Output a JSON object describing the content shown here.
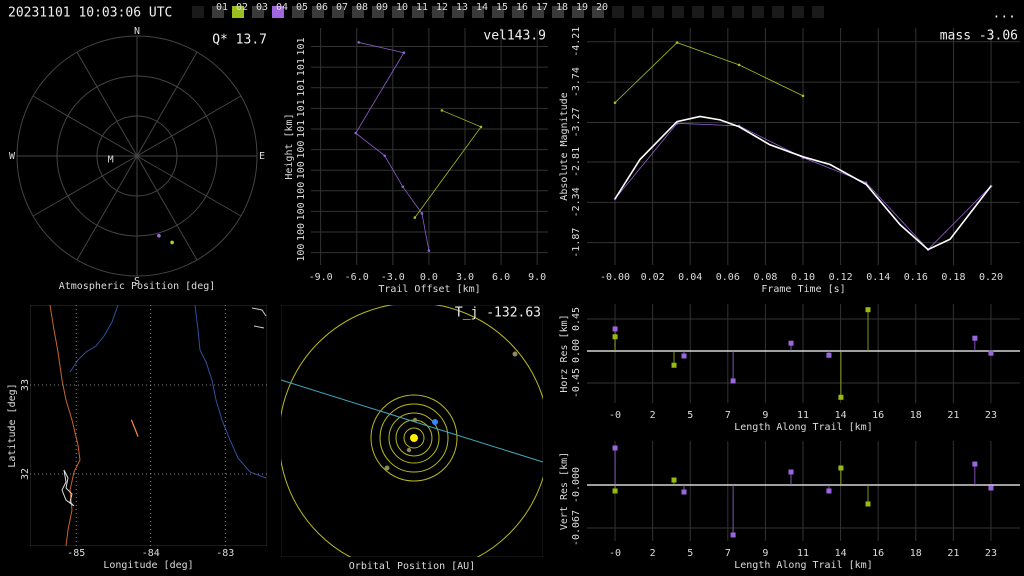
{
  "header": {
    "timestamp": "20231101 10:03:06 UTC",
    "menu": "...",
    "stations": [
      {
        "label": "01",
        "color": "#3a3a3a"
      },
      {
        "label": "02",
        "color": "#99c020"
      },
      {
        "label": "03",
        "color": "#3a3a3a"
      },
      {
        "label": "04",
        "color": "#a066e0"
      },
      {
        "label": "05",
        "color": "#3a3a3a"
      },
      {
        "label": "06",
        "color": "#3a3a3a"
      },
      {
        "label": "07",
        "color": "#3a3a3a"
      },
      {
        "label": "08",
        "color": "#3a3a3a"
      },
      {
        "label": "09",
        "color": "#3a3a3a"
      },
      {
        "label": "10",
        "color": "#3a3a3a"
      },
      {
        "label": "11",
        "color": "#3a3a3a"
      },
      {
        "label": "12",
        "color": "#3a3a3a"
      },
      {
        "label": "13",
        "color": "#3a3a3a"
      },
      {
        "label": "14",
        "color": "#3a3a3a"
      },
      {
        "label": "15",
        "color": "#3a3a3a"
      },
      {
        "label": "16",
        "color": "#3a3a3a"
      },
      {
        "label": "17",
        "color": "#3a3a3a"
      },
      {
        "label": "18",
        "color": "#3a3a3a"
      },
      {
        "label": "19",
        "color": "#3a3a3a"
      },
      {
        "label": "20",
        "color": "#3a3a3a"
      }
    ]
  },
  "chart_data": [
    {
      "type": "polar",
      "annotation": "Q* 13.7",
      "xlabel": "Atmospheric Position [deg]",
      "compass": [
        "N",
        "E",
        "S",
        "W"
      ],
      "points": [
        {
          "az": 164.6,
          "el": 28,
          "color": "#a070e0"
        },
        {
          "az": 157.9,
          "el": 20,
          "color": "#b0d020"
        }
      ],
      "marker": {
        "label": "M",
        "az": 262,
        "el": 70
      }
    },
    {
      "type": "line",
      "annotation": "vel143.9",
      "xlabel": "Trail Offset [km]",
      "ylabel": "Height [km]",
      "xlim": [
        -9.8,
        9.9
      ],
      "ylim": [
        99.89,
        101.04
      ],
      "grid": true,
      "xticks": [
        {
          "value": -9,
          "label": "-9.0"
        },
        {
          "value": -6,
          "label": "-6.0"
        },
        {
          "value": -3,
          "label": "-3.0"
        },
        {
          "value": 0,
          "label": "0.0"
        },
        {
          "value": 3,
          "label": "3.0"
        },
        {
          "value": 6,
          "label": "6.0"
        },
        {
          "value": 9,
          "label": "9.0"
        }
      ],
      "yticks": [
        {
          "value": 99.95,
          "label": "100"
        },
        {
          "value": 100.05,
          "label": "100"
        },
        {
          "value": 100.15,
          "label": "100"
        },
        {
          "value": 100.25,
          "label": "100"
        },
        {
          "value": 100.35,
          "label": "100"
        },
        {
          "value": 100.45,
          "label": "100"
        },
        {
          "value": 100.55,
          "label": "101"
        },
        {
          "value": 100.65,
          "label": "101"
        },
        {
          "value": 100.75,
          "label": "101"
        },
        {
          "value": 100.85,
          "label": "101"
        },
        {
          "value": 100.95,
          "label": "101"
        }
      ],
      "series": [
        {
          "color": "#9060d0",
          "x": [
            -5.83,
            -2.08,
            -6.08,
            -3.67,
            -2.17,
            -0.58,
            0.0
          ],
          "values": [
            100.97,
            100.92,
            100.53,
            100.42,
            100.27,
            100.14,
            99.96
          ]
        },
        {
          "color": "#a0c020",
          "x": [
            1.08,
            4.33,
            -1.17
          ],
          "values": [
            100.64,
            100.56,
            100.12
          ]
        }
      ]
    },
    {
      "type": "line",
      "annotation": "mass -3.06",
      "xlabel": "Frame Time [s]",
      "ylabel": "Absolute Magnitude",
      "xlim": [
        -0.0149,
        0.2154
      ],
      "ylim": [
        -4.37,
        -1.61
      ],
      "y_inverted": true,
      "grid": true,
      "xticks": [
        {
          "value": 0,
          "label": "-0.00"
        },
        0.02,
        0.04,
        0.06,
        0.08,
        {
          "value": 0.1,
          "label": "0.10"
        },
        0.12,
        0.14,
        0.16,
        0.18,
        {
          "value": 0.2,
          "label": "0.20"
        }
      ],
      "yticks": [
        -4.21,
        -3.74,
        -3.27,
        -2.81,
        -2.34,
        -1.87
      ],
      "series": [
        {
          "color": "#a0c020",
          "x": [
            0,
            0.033,
            0.066,
            0.1
          ],
          "values": [
            -3.5,
            -4.2,
            -3.94,
            -3.58
          ]
        },
        {
          "color": "#9060d0",
          "x": [
            0,
            0.033,
            0.066,
            0.1,
            0.1335,
            0.1665,
            0.2
          ],
          "values": [
            -2.38,
            -3.26,
            -3.23,
            -2.86,
            -2.57,
            -1.79,
            -2.53
          ]
        },
        {
          "color": "#ffffff",
          "width": 1.6,
          "x": [
            0,
            0.0133,
            0.033,
            0.0452,
            0.0559,
            0.066,
            0.0824,
            0.1,
            0.1144,
            0.1335,
            0.1516,
            0.1665,
            0.1782,
            0.2
          ],
          "values": [
            -2.38,
            -2.84,
            -3.28,
            -3.34,
            -3.3,
            -3.22,
            -3.01,
            -2.87,
            -2.78,
            -2.55,
            -2.08,
            -1.79,
            -1.91,
            -2.53
          ]
        }
      ]
    },
    {
      "type": "map",
      "xlabel": "Longitude [deg]",
      "ylabel": "Latitude [deg]",
      "xlim": [
        -85.62,
        -82.44
      ],
      "ylim": [
        31.19,
        33.9
      ],
      "grid": "dotted",
      "xticks": [
        -85,
        -84,
        -83
      ],
      "yticks": [
        32,
        33
      ],
      "trail": {
        "color": "#ff8844",
        "lon": [
          -84.26,
          -84.17
        ],
        "lat": [
          32.61,
          32.42
        ]
      }
    },
    {
      "type": "orbit",
      "xlabel": "Orbital Position [AU]",
      "annotation": "T_j -132.63"
    },
    {
      "type": "stem",
      "xlabel": "Length Along Trail [km]",
      "ylabel": "Horz Res [km]",
      "xlim": [
        -1.71,
        24.67
      ],
      "ylim": [
        -0.73,
        0.66
      ],
      "grid": true,
      "xticks": [
        {
          "value": 0,
          "label": "-0"
        },
        {
          "value": 2.29,
          "label": "2"
        },
        {
          "value": 4.58,
          "label": "5"
        },
        {
          "value": 6.87,
          "label": "7"
        },
        {
          "value": 9.16,
          "label": "9"
        },
        {
          "value": 11.45,
          "label": "11"
        },
        {
          "value": 13.74,
          "label": "14"
        },
        {
          "value": 16.03,
          "label": "16"
        },
        {
          "value": 18.32,
          "label": "18"
        },
        {
          "value": 20.61,
          "label": "21"
        },
        {
          "value": 22.9,
          "label": "23"
        }
      ],
      "yticks": [
        0.45,
        {
          "value": 0,
          "label": "0.00"
        },
        -0.45
      ],
      "series": [
        {
          "color": "#9966dd",
          "x": [
            0,
            4.2,
            7.19,
            10.72,
            13.03,
            21.92,
            22.9
          ],
          "values": [
            0.31,
            -0.07,
            -0.42,
            0.11,
            -0.06,
            0.18,
            -0.03
          ]
        },
        {
          "color": "#99bb11",
          "x": [
            0,
            3.59,
            13.76,
            15.41
          ],
          "values": [
            0.2,
            -0.2,
            -0.65,
            0.58
          ]
        }
      ]
    },
    {
      "type": "stem",
      "xlabel": "Length Along Trail [km]",
      "ylabel": "Vert Res [km]",
      "xlim": [
        -1.71,
        24.67
      ],
      "ylim": [
        -0.0873,
        0.0686
      ],
      "grid": true,
      "xticks": [
        {
          "value": 0,
          "label": "-0"
        },
        {
          "value": 2.29,
          "label": "2"
        },
        {
          "value": 4.58,
          "label": "5"
        },
        {
          "value": 6.87,
          "label": "7"
        },
        {
          "value": 9.16,
          "label": "9"
        },
        {
          "value": 11.45,
          "label": "11"
        },
        {
          "value": 13.74,
          "label": "14"
        },
        {
          "value": 16.03,
          "label": "16"
        },
        {
          "value": 18.32,
          "label": "18"
        },
        {
          "value": 20.61,
          "label": "21"
        },
        {
          "value": 22.9,
          "label": "23"
        }
      ],
      "yticks": [
        {
          "value": 0,
          "label": "-0.000"
        },
        -0.067
      ],
      "series": [
        {
          "color": "#9966dd",
          "x": [
            0,
            4.2,
            7.19,
            10.72,
            13.03,
            21.92,
            22.9
          ],
          "values": [
            0.0577,
            -0.0109,
            -0.0779,
            0.0203,
            -0.0093,
            0.0327,
            -0.0047
          ]
        },
        {
          "color": "#99bb11",
          "x": [
            0,
            3.59,
            13.76,
            15.41
          ],
          "values": [
            -0.0093,
            0.0078,
            0.0265,
            -0.0296
          ]
        }
      ]
    }
  ]
}
